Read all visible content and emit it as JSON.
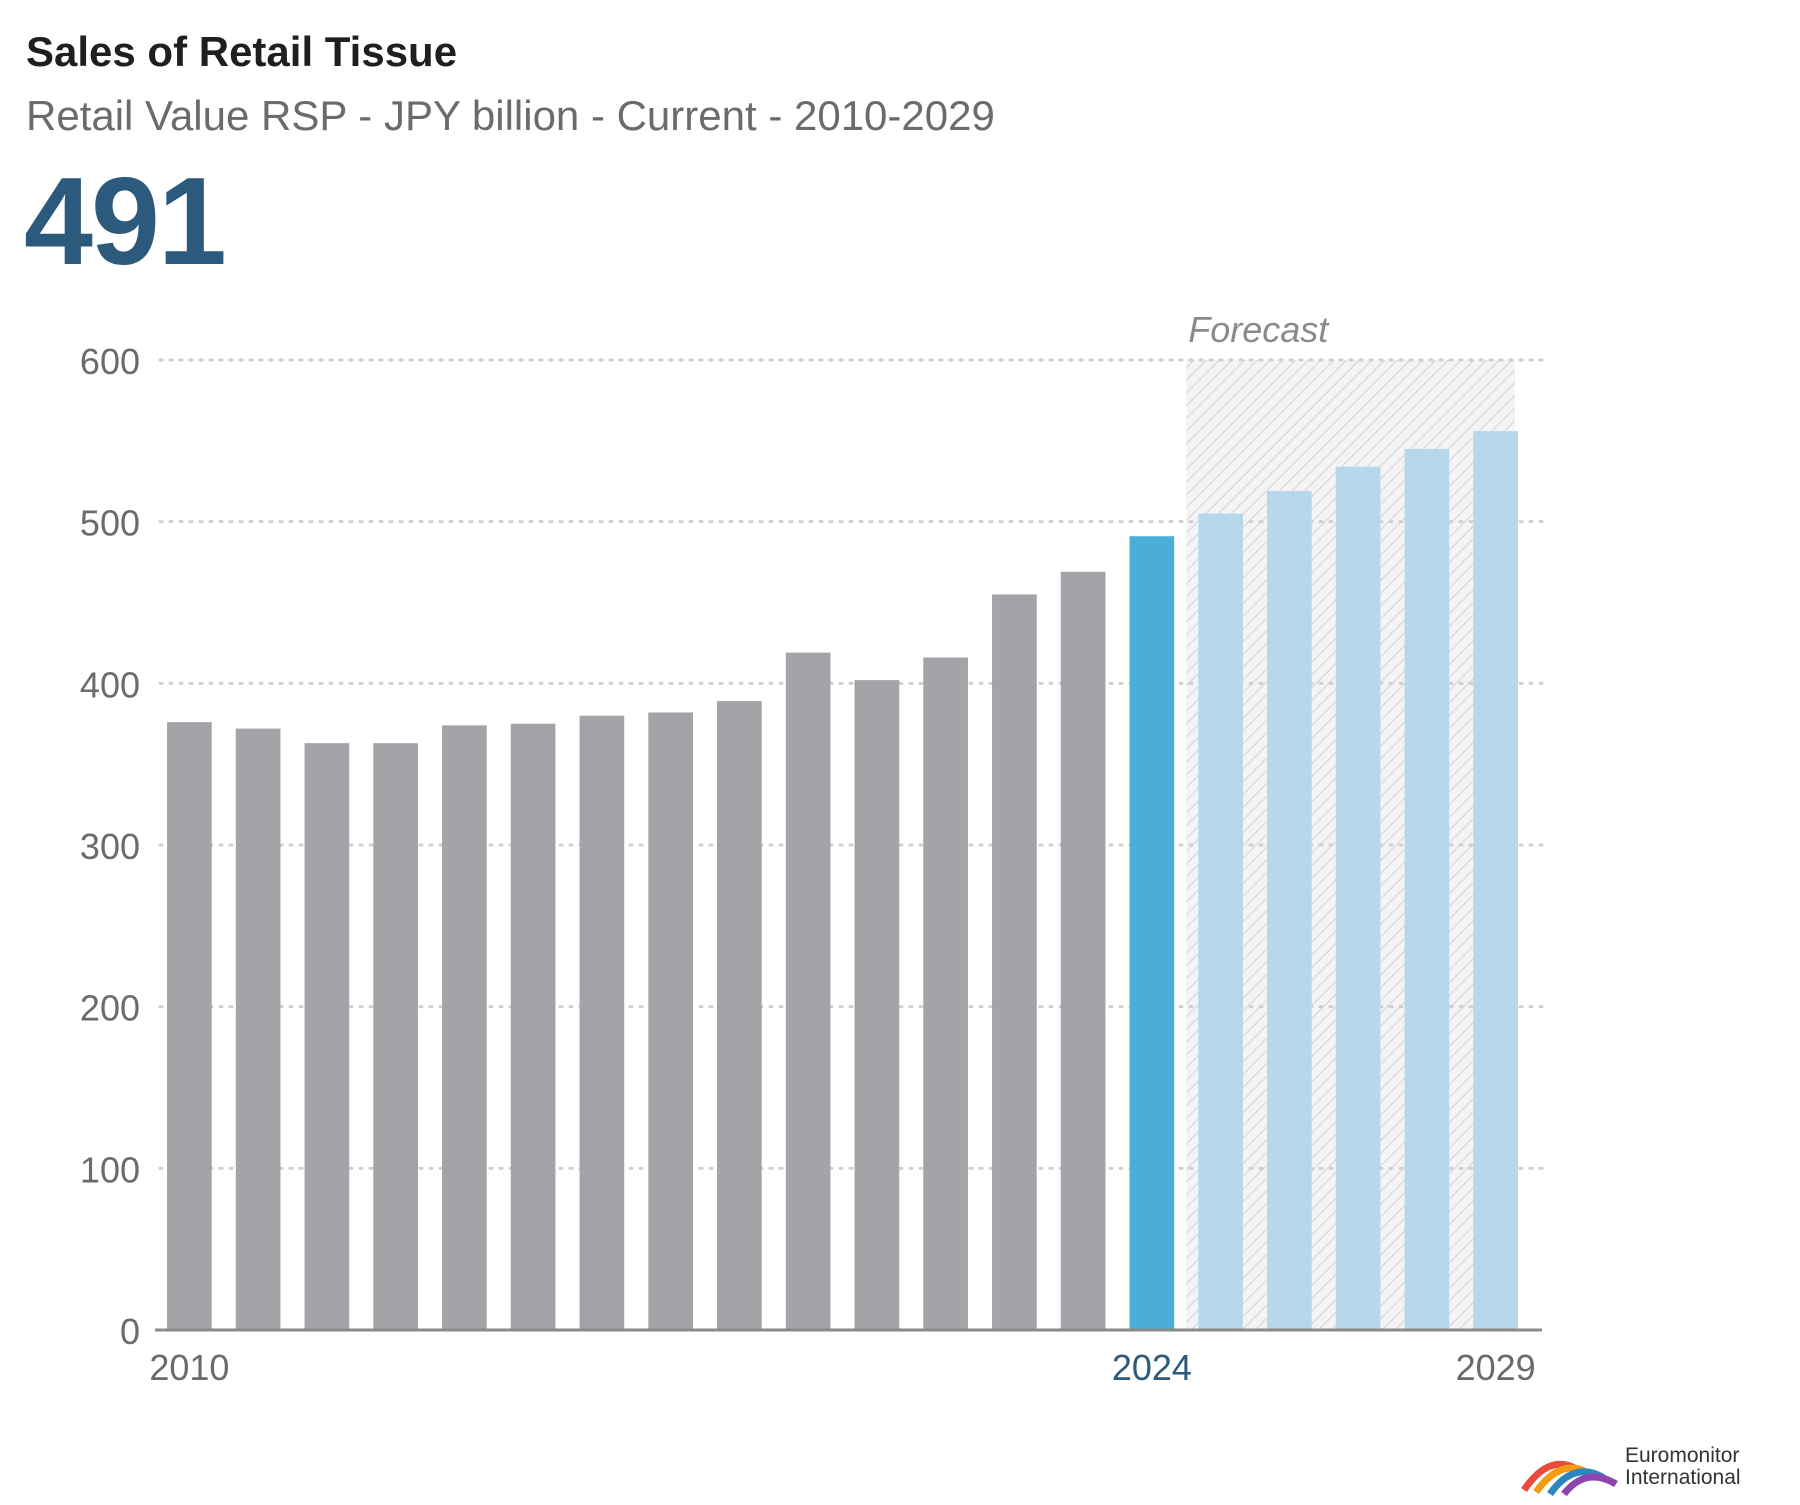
{
  "header": {
    "title": "Sales of Retail Tissue",
    "subtitle": "Retail Value RSP - JPY billion - Current - 2010-2029",
    "headline_value": "491"
  },
  "chart_data": {
    "type": "bar",
    "title": "Sales of Retail Tissue",
    "subtitle": "Retail Value RSP - JPY billion - Current - 2010-2029",
    "xlabel": "",
    "ylabel": "",
    "ylim": [
      0,
      600
    ],
    "yticks": [
      0,
      100,
      200,
      300,
      400,
      500,
      600
    ],
    "grid": true,
    "categories": [
      2010,
      2011,
      2012,
      2013,
      2014,
      2015,
      2016,
      2017,
      2018,
      2019,
      2020,
      2021,
      2022,
      2023,
      2024,
      2025,
      2026,
      2027,
      2028,
      2029
    ],
    "x_tick_labels": [
      {
        "year": 2010,
        "label": "2010"
      },
      {
        "year": 2024,
        "label": "2024"
      },
      {
        "year": 2029,
        "label": "2029"
      }
    ],
    "values": [
      376,
      372,
      363,
      363,
      374,
      375,
      380,
      382,
      389,
      419,
      402,
      416,
      455,
      469,
      491,
      505,
      519,
      534,
      545,
      556
    ],
    "current_year": 2024,
    "forecast_from": 2025,
    "forecast_label": "Forecast",
    "colors": {
      "historical": "#a3a4a7",
      "current": "#4aaed8",
      "forecast": "#b7d8eb",
      "current_tick": "#2c5a7c",
      "grid": "#cfcfcf",
      "axis": "#8a8a8a"
    }
  },
  "brand": {
    "logo_line1": "Euromonitor",
    "logo_line2": "International"
  }
}
